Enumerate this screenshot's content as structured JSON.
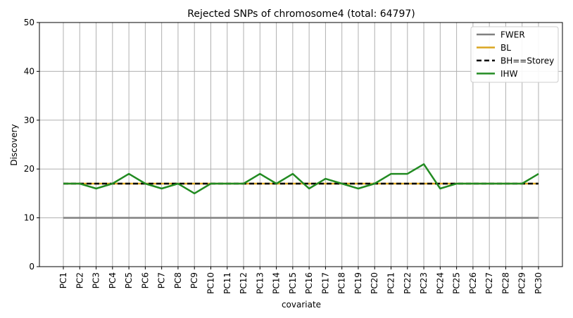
{
  "chart_data": {
    "type": "line",
    "title": "Rejected SNPs of chromosome4 (total: 64797)",
    "xlabel": "covariate",
    "ylabel": "Discovery",
    "ylim": [
      0,
      50
    ],
    "yticks": [
      0,
      10,
      20,
      30,
      40,
      50
    ],
    "grid": true,
    "legend_position": "top-right",
    "categories": [
      "PC1",
      "PC2",
      "PC3",
      "PC4",
      "PC5",
      "PC6",
      "PC7",
      "PC8",
      "PC9",
      "PC10",
      "PC11",
      "PC12",
      "PC13",
      "PC14",
      "PC15",
      "PC16",
      "PC17",
      "PC18",
      "PC19",
      "PC20",
      "PC21",
      "PC22",
      "PC23",
      "PC24",
      "PC25",
      "PC26",
      "PC27",
      "PC28",
      "PC29",
      "PC30"
    ],
    "series": [
      {
        "name": "FWER",
        "color": "#808080",
        "dash": false,
        "values": [
          10,
          10,
          10,
          10,
          10,
          10,
          10,
          10,
          10,
          10,
          10,
          10,
          10,
          10,
          10,
          10,
          10,
          10,
          10,
          10,
          10,
          10,
          10,
          10,
          10,
          10,
          10,
          10,
          10,
          10
        ]
      },
      {
        "name": "BL",
        "color": "#DAA520",
        "dash": false,
        "values": [
          17,
          17,
          17,
          17,
          17,
          17,
          17,
          17,
          17,
          17,
          17,
          17,
          17,
          17,
          17,
          17,
          17,
          17,
          17,
          17,
          17,
          17,
          17,
          17,
          17,
          17,
          17,
          17,
          17,
          17
        ]
      },
      {
        "name": "BH==Storey",
        "color": "#000000",
        "dash": true,
        "values": [
          17,
          17,
          17,
          17,
          17,
          17,
          17,
          17,
          17,
          17,
          17,
          17,
          17,
          17,
          17,
          17,
          17,
          17,
          17,
          17,
          17,
          17,
          17,
          17,
          17,
          17,
          17,
          17,
          17,
          17
        ]
      },
      {
        "name": "IHW",
        "color": "#228B22",
        "dash": false,
        "values": [
          17,
          17,
          16,
          17,
          19,
          17,
          16,
          17,
          15,
          17,
          17,
          17,
          19,
          17,
          19,
          16,
          18,
          17,
          16,
          17,
          19,
          19,
          21,
          16,
          17,
          17,
          17,
          17,
          17,
          19
        ]
      }
    ]
  }
}
